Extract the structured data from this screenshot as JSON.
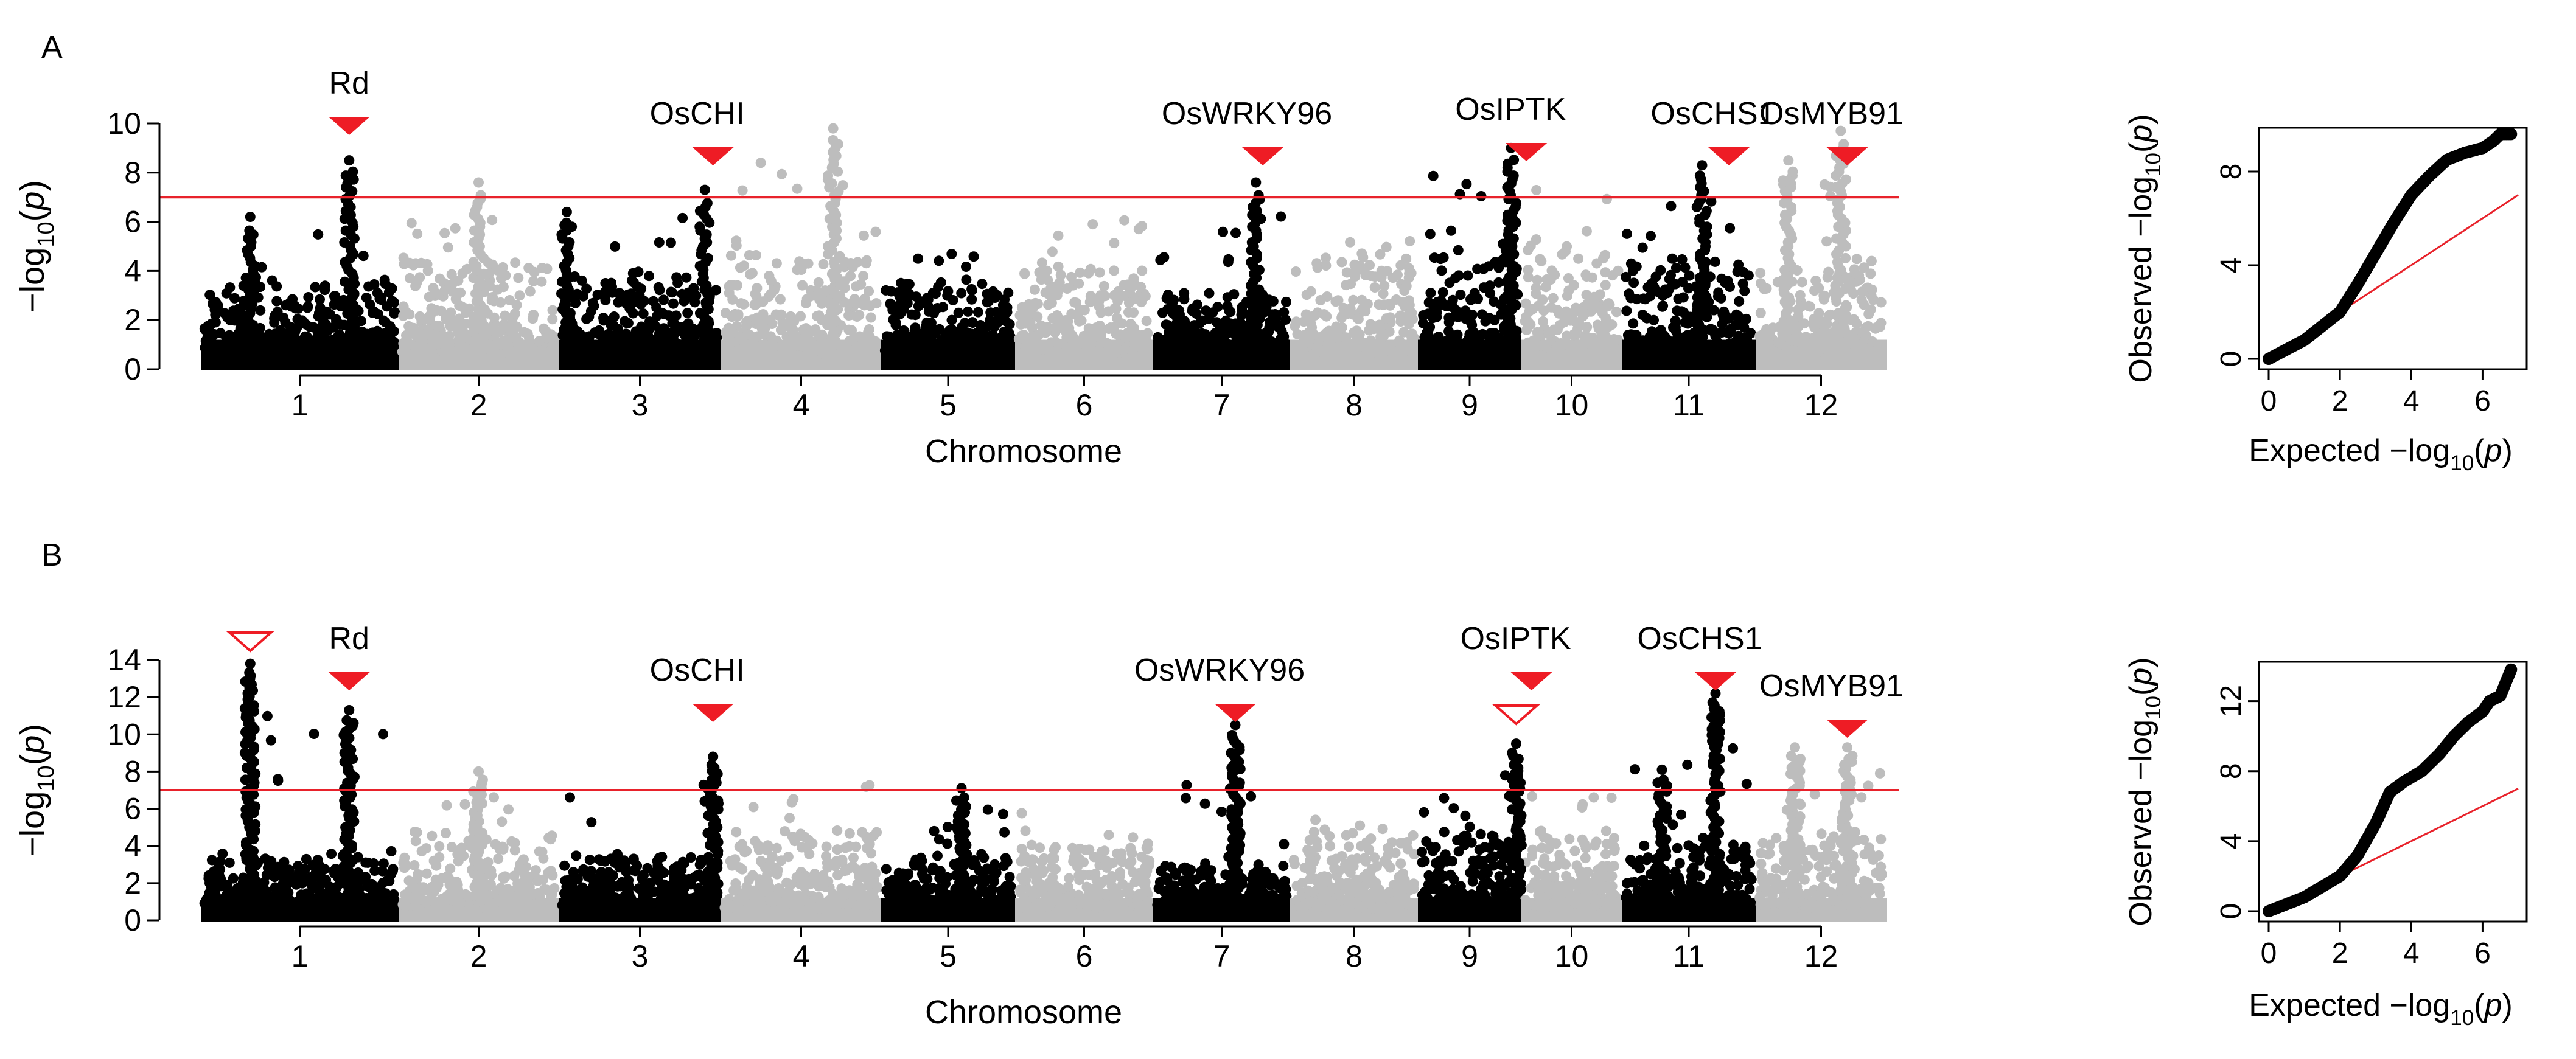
{
  "panel_labels": {
    "a": "A",
    "b": "B"
  },
  "colors": {
    "dark": "#000000",
    "light": "#bdbdbd",
    "threshold": "#e8222b",
    "marker": "#ee1c25"
  },
  "chart_data": [
    {
      "id": "A-manhattan",
      "type": "scatter",
      "subtype": "manhattan",
      "panel": "A",
      "xlabel": "Chromosome",
      "ylabel_prefix": "−log",
      "ylabel_sub": "10",
      "ylabel_var": "(p)",
      "ylim": [
        0,
        10
      ],
      "yticks": [
        0,
        2,
        4,
        6,
        8,
        10
      ],
      "threshold": 7,
      "chromosomes": [
        "1",
        "2",
        "3",
        "4",
        "5",
        "6",
        "7",
        "8",
        "9",
        "10",
        "11",
        "12"
      ],
      "chrom_profile": [
        {
          "chrom": "1",
          "base": 3.0,
          "max": 8.5
        },
        {
          "chrom": "2",
          "base": 4.0,
          "max": 7.6
        },
        {
          "chrom": "3",
          "base": 3.2,
          "max": 7.3
        },
        {
          "chrom": "4",
          "base": 4.5,
          "max": 9.8
        },
        {
          "chrom": "5",
          "base": 3.0,
          "max": 5.4
        },
        {
          "chrom": "6",
          "base": 3.6,
          "max": 7.4
        },
        {
          "chrom": "7",
          "base": 2.6,
          "max": 7.6
        },
        {
          "chrom": "8",
          "base": 4.0,
          "max": 6.0
        },
        {
          "chrom": "9",
          "base": 4.5,
          "max": 9.0
        },
        {
          "chrom": "10",
          "base": 4.0,
          "max": 8.4
        },
        {
          "chrom": "11",
          "base": 3.8,
          "max": 8.3
        },
        {
          "chrom": "12",
          "base": 4.0,
          "max": 9.7
        }
      ],
      "peaks": [
        {
          "chrom": "1",
          "pos": 0.25,
          "value": 6.2
        },
        {
          "chrom": "1",
          "pos": 0.75,
          "value": 8.5
        },
        {
          "chrom": "2",
          "pos": 0.5,
          "value": 7.6
        },
        {
          "chrom": "3",
          "pos": 0.05,
          "value": 6.4
        },
        {
          "chrom": "3",
          "pos": 0.9,
          "value": 7.3
        },
        {
          "chrom": "4",
          "pos": 0.7,
          "value": 9.8
        },
        {
          "chrom": "7",
          "pos": 0.75,
          "value": 7.6
        },
        {
          "chrom": "9",
          "pos": 0.9,
          "value": 9.0
        },
        {
          "chrom": "11",
          "pos": 0.6,
          "value": 8.3
        },
        {
          "chrom": "12",
          "pos": 0.25,
          "value": 8.5
        },
        {
          "chrom": "12",
          "pos": 0.65,
          "value": 9.7
        }
      ],
      "genes": [
        {
          "label": "Rd",
          "chrom": "1",
          "pos": 0.75,
          "tier": 0,
          "filled": true
        },
        {
          "label": "OsCHI",
          "chrom": "3",
          "pos": 0.95,
          "tier": 1,
          "filled": true
        },
        {
          "label": "OsWRKY96",
          "chrom": "7",
          "pos": 0.8,
          "tier": 1,
          "filled": true
        },
        {
          "label": "OsIPTK",
          "chrom": "10",
          "pos": 0.05,
          "tier": 2,
          "filled": true
        },
        {
          "label": "OsCHS1",
          "chrom": "11",
          "pos": 0.8,
          "tier": 1,
          "filled": true
        },
        {
          "label": "OsMYB91",
          "chrom": "12",
          "pos": 0.7,
          "tier": 3,
          "filled": true
        }
      ]
    },
    {
      "id": "A-qq",
      "type": "scatter",
      "subtype": "qq",
      "panel": "A",
      "xlabel_prefix": "Expected −log",
      "ylabel_prefix": "Observed −log",
      "label_sub": "10",
      "label_var": "(p)",
      "xlim": [
        0,
        7
      ],
      "ylim": [
        0,
        10
      ],
      "xticks": [
        0,
        2,
        4,
        6
      ],
      "yticks": [
        0,
        4,
        8
      ],
      "curve": [
        [
          0,
          0
        ],
        [
          1,
          0.8
        ],
        [
          2,
          2.0
        ],
        [
          2.5,
          3.2
        ],
        [
          3,
          4.5
        ],
        [
          3.5,
          5.8
        ],
        [
          4,
          7.0
        ],
        [
          4.5,
          7.8
        ],
        [
          5,
          8.5
        ],
        [
          5.5,
          8.8
        ],
        [
          6,
          9.0
        ],
        [
          6.3,
          9.3
        ],
        [
          6.5,
          9.6
        ],
        [
          6.8,
          9.6
        ]
      ],
      "reference_line": [
        [
          0,
          0
        ],
        [
          7,
          7
        ]
      ]
    },
    {
      "id": "B-manhattan",
      "type": "scatter",
      "subtype": "manhattan",
      "panel": "B",
      "xlabel": "Chromosome",
      "ylabel_prefix": "−log",
      "ylabel_sub": "10",
      "ylabel_var": "(p)",
      "ylim": [
        0,
        14
      ],
      "yticks": [
        0,
        2,
        4,
        6,
        8,
        10,
        12,
        14
      ],
      "threshold": 7,
      "chromosomes": [
        "1",
        "2",
        "3",
        "4",
        "5",
        "6",
        "7",
        "8",
        "9",
        "10",
        "11",
        "12"
      ],
      "chrom_profile": [
        {
          "chrom": "1",
          "base": 3.0,
          "max": 13.8
        },
        {
          "chrom": "2",
          "base": 4.2,
          "max": 8.0
        },
        {
          "chrom": "3",
          "base": 3.0,
          "max": 8.8
        },
        {
          "chrom": "4",
          "base": 4.2,
          "max": 8.6
        },
        {
          "chrom": "5",
          "base": 3.0,
          "max": 7.1
        },
        {
          "chrom": "6",
          "base": 3.6,
          "max": 6.5
        },
        {
          "chrom": "7",
          "base": 2.6,
          "max": 10.5
        },
        {
          "chrom": "8",
          "base": 4.2,
          "max": 6.5
        },
        {
          "chrom": "9",
          "base": 4.2,
          "max": 9.5
        },
        {
          "chrom": "10",
          "base": 4.2,
          "max": 8.6
        },
        {
          "chrom": "11",
          "base": 3.6,
          "max": 12.2
        },
        {
          "chrom": "12",
          "base": 4.2,
          "max": 9.3
        }
      ],
      "peaks": [
        {
          "chrom": "1",
          "pos": 0.25,
          "value": 13.8
        },
        {
          "chrom": "1",
          "pos": 0.75,
          "value": 11.3
        },
        {
          "chrom": "2",
          "pos": 0.5,
          "value": 8.0
        },
        {
          "chrom": "3",
          "pos": 0.95,
          "value": 8.8
        },
        {
          "chrom": "5",
          "pos": 0.6,
          "value": 7.1
        },
        {
          "chrom": "7",
          "pos": 0.6,
          "value": 10.5
        },
        {
          "chrom": "9",
          "pos": 0.95,
          "value": 9.5
        },
        {
          "chrom": "11",
          "pos": 0.3,
          "value": 8.1
        },
        {
          "chrom": "11",
          "pos": 0.7,
          "value": 12.2
        },
        {
          "chrom": "12",
          "pos": 0.3,
          "value": 9.3
        },
        {
          "chrom": "12",
          "pos": 0.7,
          "value": 9.3
        }
      ],
      "genes": [
        {
          "label": "Rd",
          "chrom": "1",
          "pos": 0.75,
          "tier": 1,
          "filled": true
        },
        {
          "label": "",
          "chrom": "1",
          "pos": 0.25,
          "tier": 0,
          "filled": false
        },
        {
          "label": "OsCHI",
          "chrom": "3",
          "pos": 0.95,
          "tier": 2,
          "filled": true
        },
        {
          "label": "OsWRKY96",
          "chrom": "7",
          "pos": 0.6,
          "tier": 2,
          "filled": true
        },
        {
          "label": "",
          "chrom": "9",
          "pos": 0.95,
          "tier": 3,
          "filled": false
        },
        {
          "label": "OsIPTK",
          "chrom": "10",
          "pos": 0.1,
          "tier": 1,
          "filled": true
        },
        {
          "label": "OsCHS1",
          "chrom": "11",
          "pos": 0.7,
          "tier": 1,
          "filled": true
        },
        {
          "label": "OsMYB91",
          "chrom": "12",
          "pos": 0.7,
          "tier": 4,
          "filled": true
        }
      ]
    },
    {
      "id": "B-qq",
      "type": "scatter",
      "subtype": "qq",
      "panel": "B",
      "xlabel_prefix": "Expected −log",
      "ylabel_prefix": "Observed −log",
      "label_sub": "10",
      "label_var": "(p)",
      "xlim": [
        0,
        7
      ],
      "ylim": [
        0,
        14
      ],
      "xticks": [
        0,
        2,
        4,
        6
      ],
      "yticks": [
        0,
        4,
        8,
        12
      ],
      "curve": [
        [
          0,
          0
        ],
        [
          1,
          0.8
        ],
        [
          2,
          2.0
        ],
        [
          2.5,
          3.2
        ],
        [
          3,
          5.0
        ],
        [
          3.4,
          6.8
        ],
        [
          3.8,
          7.4
        ],
        [
          4.3,
          8.0
        ],
        [
          4.8,
          9.0
        ],
        [
          5.2,
          10.0
        ],
        [
          5.6,
          10.8
        ],
        [
          6,
          11.4
        ],
        [
          6.2,
          12.0
        ],
        [
          6.5,
          12.3
        ],
        [
          6.8,
          13.8
        ]
      ],
      "reference_line": [
        [
          0,
          0
        ],
        [
          7,
          7
        ]
      ]
    }
  ]
}
